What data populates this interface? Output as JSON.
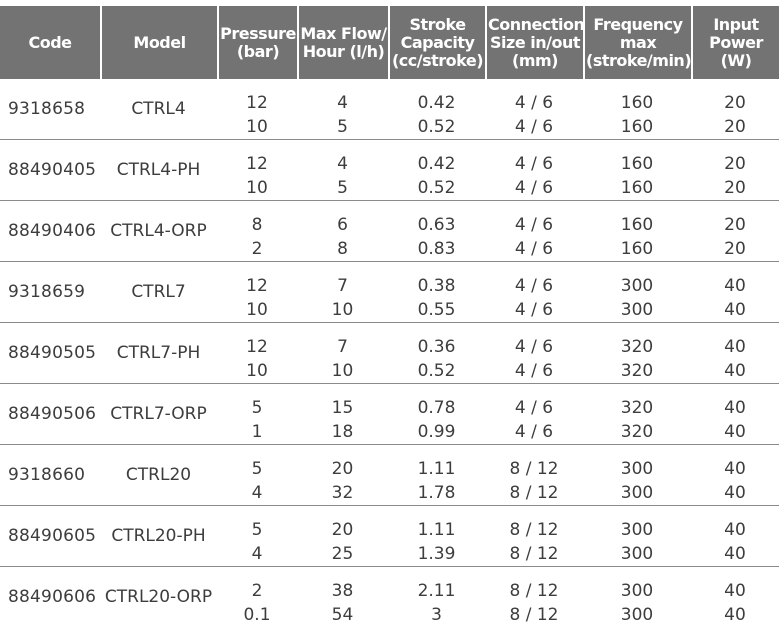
{
  "headers": {
    "code": [
      "Code"
    ],
    "model": [
      "Model"
    ],
    "pressure": [
      "Pressure",
      "(bar)"
    ],
    "flow": [
      "Max Flow/",
      "Hour (l/h)"
    ],
    "stroke": [
      "Stroke",
      "Capacity",
      "(cc/stroke)"
    ],
    "connection": [
      "Connection",
      "Size in/out",
      "(mm)"
    ],
    "frequency": [
      "Frequency",
      "max",
      "(stroke/min)"
    ],
    "power": [
      "Input",
      "Power",
      "(W)"
    ]
  },
  "groups": [
    {
      "code": "9318658",
      "model": "CTRL4",
      "rows": [
        {
          "pressure": "12",
          "flow": "4",
          "stroke": "0.42",
          "conn": "4 / 6",
          "freq": "160",
          "power": "20"
        },
        {
          "pressure": "10",
          "flow": "5",
          "stroke": "0.52",
          "conn": "4 / 6",
          "freq": "160",
          "power": "20"
        }
      ]
    },
    {
      "code": "88490405",
      "model": "CTRL4-PH",
      "rows": [
        {
          "pressure": "12",
          "flow": "4",
          "stroke": "0.42",
          "conn": "4 / 6",
          "freq": "160",
          "power": "20"
        },
        {
          "pressure": "10",
          "flow": "5",
          "stroke": "0.52",
          "conn": "4 / 6",
          "freq": "160",
          "power": "20"
        }
      ]
    },
    {
      "code": "88490406",
      "model": "CTRL4-ORP",
      "rows": [
        {
          "pressure": "8",
          "flow": "6",
          "stroke": "0.63",
          "conn": "4 / 6",
          "freq": "160",
          "power": "20"
        },
        {
          "pressure": "2",
          "flow": "8",
          "stroke": "0.83",
          "conn": "4 / 6",
          "freq": "160",
          "power": "20"
        }
      ]
    },
    {
      "code": "9318659",
      "model": "CTRL7",
      "rows": [
        {
          "pressure": "12",
          "flow": "7",
          "stroke": "0.38",
          "conn": "4 / 6",
          "freq": "300",
          "power": "40"
        },
        {
          "pressure": "10",
          "flow": "10",
          "stroke": "0.55",
          "conn": "4 / 6",
          "freq": "300",
          "power": "40"
        }
      ]
    },
    {
      "code": "88490505",
      "model": "CTRL7-PH",
      "rows": [
        {
          "pressure": "12",
          "flow": "7",
          "stroke": "0.36",
          "conn": "4 / 6",
          "freq": "320",
          "power": "40"
        },
        {
          "pressure": "10",
          "flow": "10",
          "stroke": "0.52",
          "conn": "4 / 6",
          "freq": "320",
          "power": "40"
        }
      ]
    },
    {
      "code": "88490506",
      "model": "CTRL7-ORP",
      "rows": [
        {
          "pressure": "5",
          "flow": "15",
          "stroke": "0.78",
          "conn": "4 / 6",
          "freq": "320",
          "power": "40"
        },
        {
          "pressure": "1",
          "flow": "18",
          "stroke": "0.99",
          "conn": "4 / 6",
          "freq": "320",
          "power": "40"
        }
      ]
    },
    {
      "code": "9318660",
      "model": "CTRL20",
      "rows": [
        {
          "pressure": "5",
          "flow": "20",
          "stroke": "1.11",
          "conn": "8 / 12",
          "freq": "300",
          "power": "40"
        },
        {
          "pressure": "4",
          "flow": "32",
          "stroke": "1.78",
          "conn": "8 / 12",
          "freq": "300",
          "power": "40"
        }
      ]
    },
    {
      "code": "88490605",
      "model": "CTRL20-PH",
      "rows": [
        {
          "pressure": "5",
          "flow": "20",
          "stroke": "1.11",
          "conn": "8 / 12",
          "freq": "300",
          "power": "40"
        },
        {
          "pressure": "4",
          "flow": "25",
          "stroke": "1.39",
          "conn": "8 / 12",
          "freq": "300",
          "power": "40"
        }
      ]
    },
    {
      "code": "88490606",
      "model": "CTRL20-ORP",
      "rows": [
        {
          "pressure": "2",
          "flow": "38",
          "stroke": "2.11",
          "conn": "8 / 12",
          "freq": "300",
          "power": "40"
        },
        {
          "pressure": "0.1",
          "flow": "54",
          "stroke": "3",
          "conn": "8 / 12",
          "freq": "300",
          "power": "40"
        }
      ]
    }
  ],
  "colors": {
    "header_bg": "#737373",
    "header_text": "#ffffff",
    "body_text": "#3d3d3d",
    "divider": "#8a8a8a"
  }
}
